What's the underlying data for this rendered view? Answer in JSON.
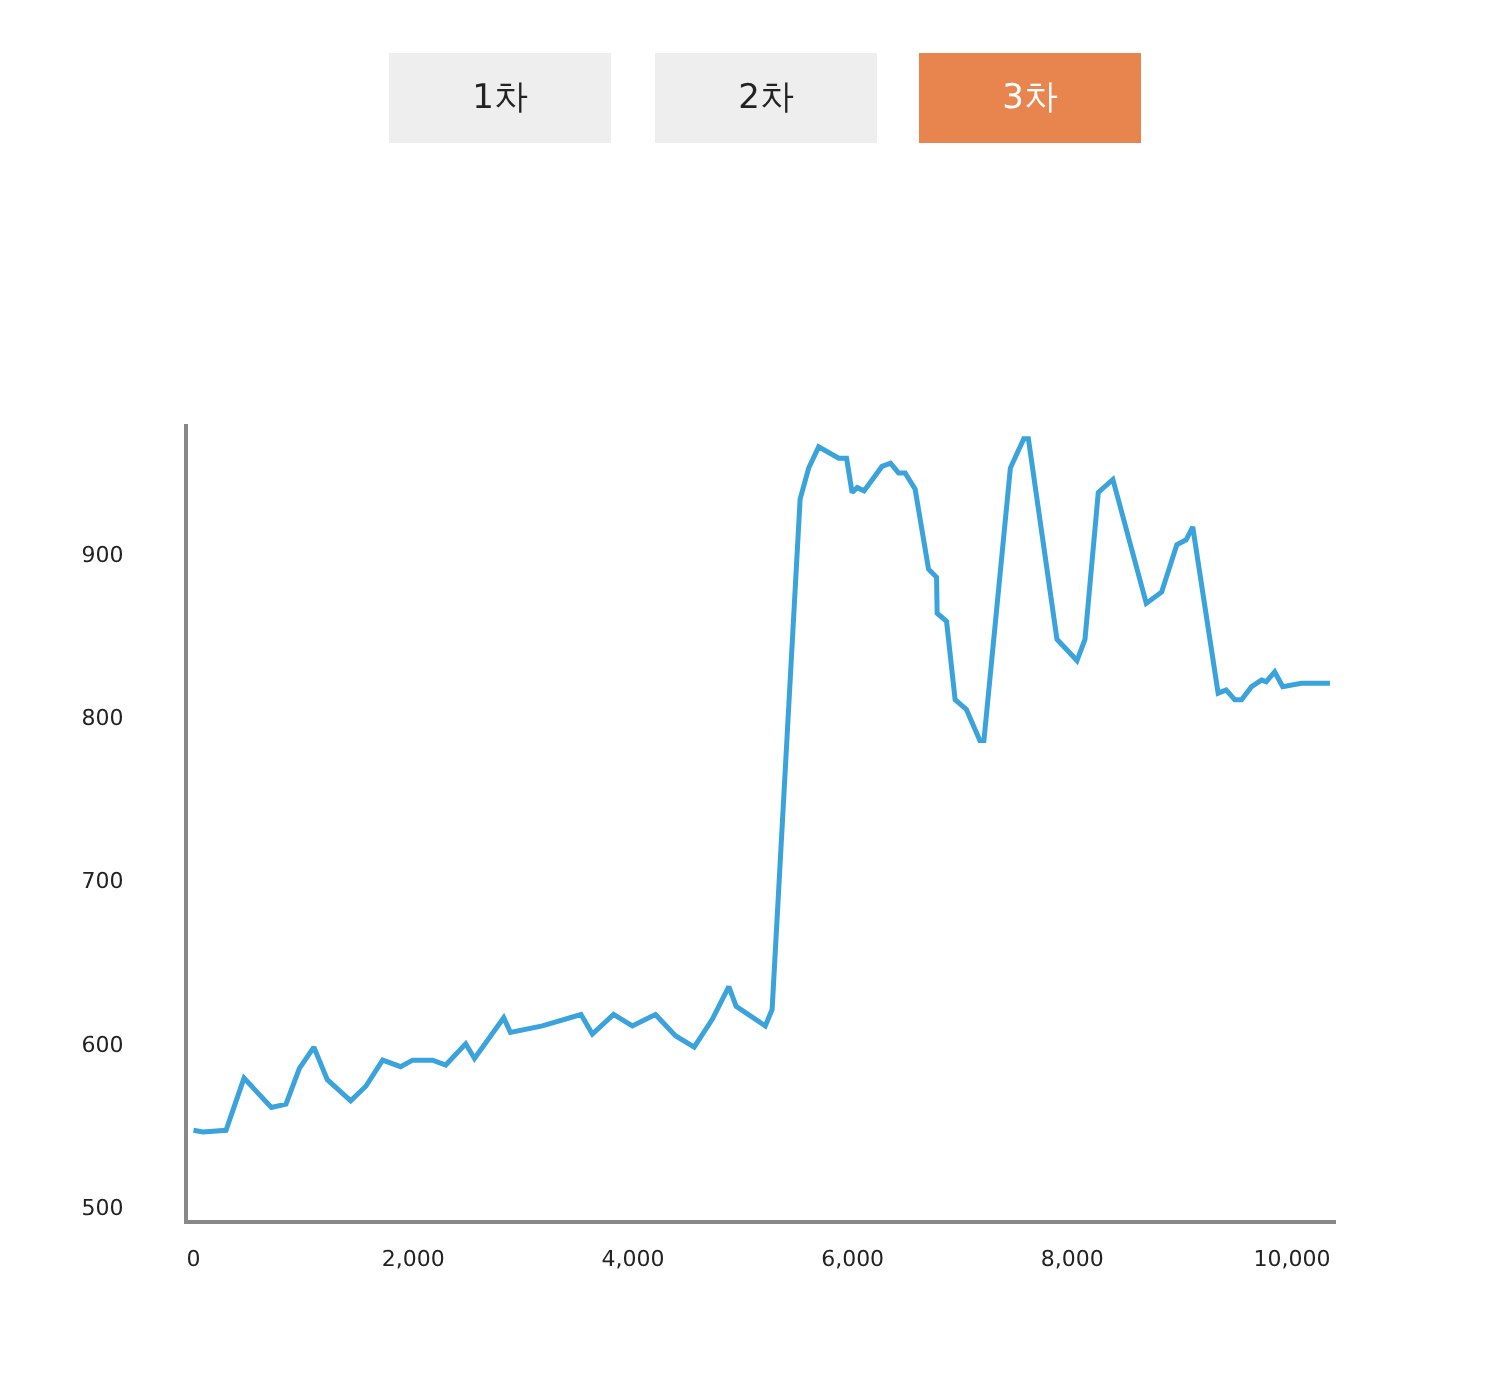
{
  "chart_data": {
    "type": "line",
    "annotations": [
      "1차",
      "2차",
      "3차"
    ],
    "x": [
      0,
      85,
      296,
      460,
      709,
      842,
      964,
      1096,
      1218,
      1431,
      1569,
      1722,
      1885,
      1995,
      2176,
      2296,
      2478,
      2558,
      2824,
      2885,
      3176,
      3527,
      3631,
      3824,
      3995,
      4205,
      4387,
      4558,
      4722,
      4873,
      4940,
      5205,
      5267,
      5522,
      5600,
      5691,
      5873,
      5945,
      5995,
      6042,
      6104,
      6267,
      6345,
      6418,
      6478,
      6569,
      6691,
      6764,
      6769,
      6855,
      6933,
      7036,
      7158,
      7195,
      7436,
      7558,
      7600,
      7860,
      8042,
      8115,
      8236,
      8369,
      8673,
      8813,
      8951,
      9036,
      9096,
      9327,
      9400,
      9478,
      9540,
      9631,
      9722,
      9764,
      9842,
      9915,
      10085,
      10345
    ],
    "series": [
      {
        "color": "#3aa3dc",
        "values": [
          547,
          546,
          547,
          579,
          561,
          563,
          585,
          598,
          578,
          565,
          574,
          590,
          586,
          590,
          590,
          587,
          600,
          591,
          616,
          607,
          611,
          618,
          606,
          618,
          611,
          618,
          605,
          598,
          615,
          635,
          623,
          611,
          621,
          934,
          953,
          966,
          959,
          959,
          938,
          941,
          939,
          954,
          956,
          950,
          950,
          940,
          891,
          886,
          864,
          859,
          811,
          805,
          786,
          786,
          953,
          971,
          971,
          848,
          835,
          848,
          938,
          946,
          870,
          877,
          906,
          909,
          917,
          815,
          817,
          811,
          811,
          819,
          823,
          822,
          828,
          819,
          821,
          821
        ]
      }
    ],
    "xlim": [
      -50,
      10400
    ],
    "xticks": [
      {
        "value": 0,
        "label": "0"
      },
      {
        "value": 2000,
        "label": "2,000"
      },
      {
        "value": 4000,
        "label": "4,000"
      },
      {
        "value": 6000,
        "label": "6,000"
      },
      {
        "value": 8000,
        "label": "8,000"
      },
      {
        "value": 10000,
        "label": "10,000"
      }
    ],
    "ylim": [
      492,
      980
    ],
    "yticks": [
      500,
      600,
      700,
      800,
      900
    ],
    "marker": "none",
    "line_style": "solid"
  }
}
